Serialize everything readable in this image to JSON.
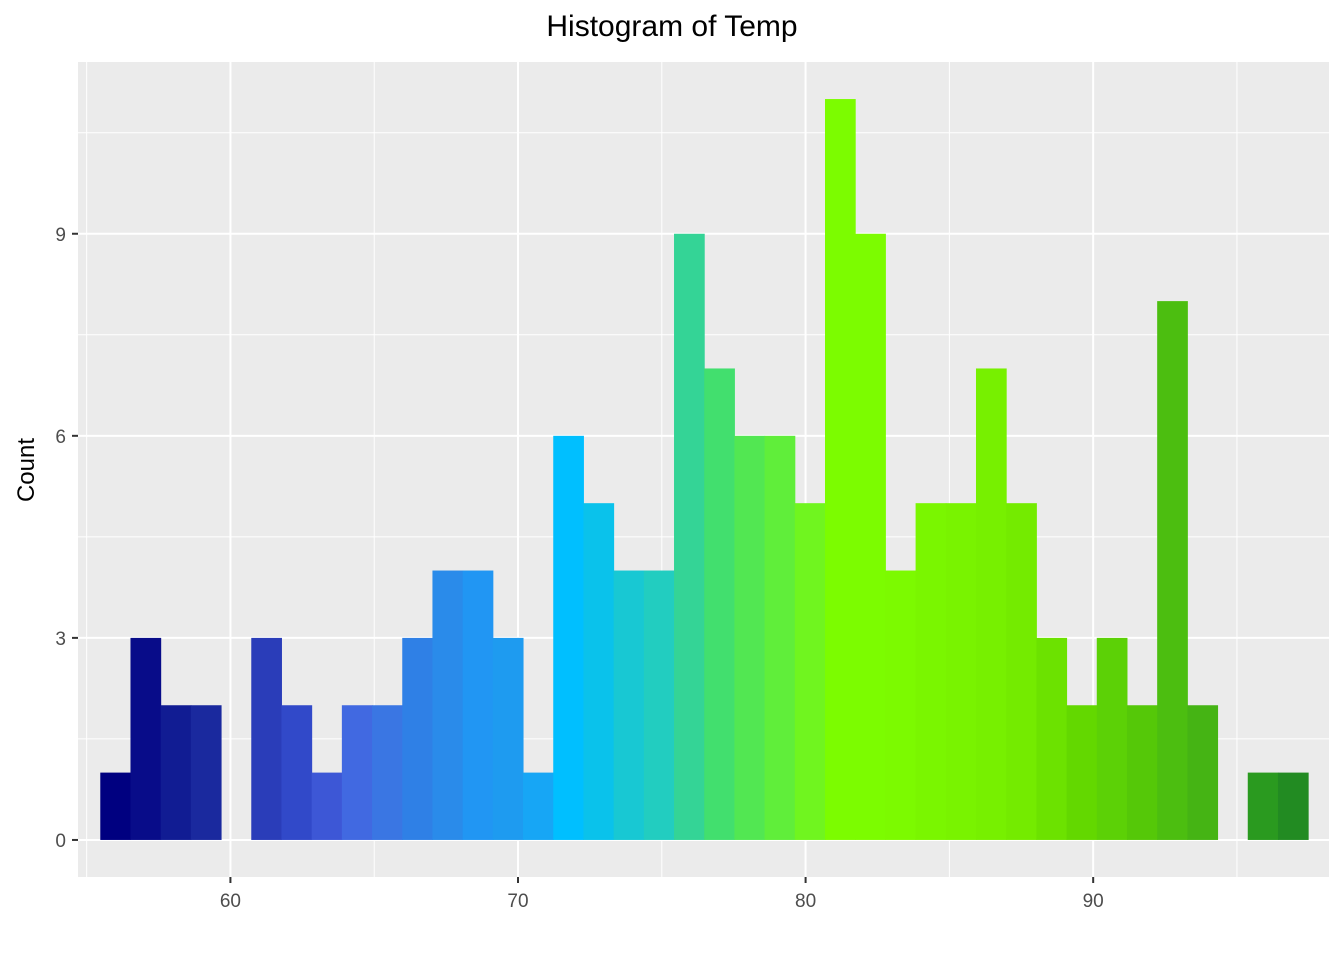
{
  "chart_data": {
    "type": "bar",
    "title": "Histogram of Temp",
    "xlabel": "",
    "ylabel": "Count",
    "x_ticks": [
      60,
      70,
      80,
      90
    ],
    "y_ticks": [
      0,
      3,
      6,
      9
    ],
    "xlim": [
      54.7,
      98.2
    ],
    "ylim": [
      -0.55,
      11.55
    ],
    "grid": true,
    "bins": [
      {
        "x": 56.0,
        "count": 1,
        "color": "#000080"
      },
      {
        "x": 57.05,
        "count": 3,
        "color": "#080C89"
      },
      {
        "x": 58.1,
        "count": 2,
        "color": "#111C93"
      },
      {
        "x": 59.15,
        "count": 2,
        "color": "#1A299E"
      },
      {
        "x": 60.2,
        "count": 0,
        "color": "#2233A8"
      },
      {
        "x": 61.25,
        "count": 3,
        "color": "#2A3DB9"
      },
      {
        "x": 62.3,
        "count": 2,
        "color": "#3149C9"
      },
      {
        "x": 63.35,
        "count": 1,
        "color": "#3D57D6"
      },
      {
        "x": 64.4,
        "count": 2,
        "color": "#4169E1"
      },
      {
        "x": 65.45,
        "count": 2,
        "color": "#3A76E3"
      },
      {
        "x": 66.5,
        "count": 3,
        "color": "#2F80E6"
      },
      {
        "x": 67.55,
        "count": 4,
        "color": "#2A8BEA"
      },
      {
        "x": 68.6,
        "count": 4,
        "color": "#2196F3"
      },
      {
        "x": 69.65,
        "count": 3,
        "color": "#1E9BF0"
      },
      {
        "x": 70.7,
        "count": 1,
        "color": "#17A6F5"
      },
      {
        "x": 71.75,
        "count": 6,
        "color": "#00BFFF"
      },
      {
        "x": 72.8,
        "count": 5,
        "color": "#0AC2EB"
      },
      {
        "x": 73.85,
        "count": 4,
        "color": "#18C8D3"
      },
      {
        "x": 74.9,
        "count": 4,
        "color": "#22CDC0"
      },
      {
        "x": 75.95,
        "count": 9,
        "color": "#34D496"
      },
      {
        "x": 77.0,
        "count": 7,
        "color": "#42DF6E"
      },
      {
        "x": 78.05,
        "count": 6,
        "color": "#52E752"
      },
      {
        "x": 79.1,
        "count": 6,
        "color": "#60EE3A"
      },
      {
        "x": 80.15,
        "count": 5,
        "color": "#70F51F"
      },
      {
        "x": 81.2,
        "count": 11,
        "color": "#7CFC00"
      },
      {
        "x": 82.25,
        "count": 9,
        "color": "#7CFC00"
      },
      {
        "x": 83.3,
        "count": 4,
        "color": "#7CFA00"
      },
      {
        "x": 84.35,
        "count": 5,
        "color": "#7AF600"
      },
      {
        "x": 85.4,
        "count": 5,
        "color": "#79F300"
      },
      {
        "x": 86.45,
        "count": 7,
        "color": "#77F000"
      },
      {
        "x": 87.5,
        "count": 5,
        "color": "#74EB00"
      },
      {
        "x": 88.55,
        "count": 3,
        "color": "#6CE200"
      },
      {
        "x": 89.6,
        "count": 2,
        "color": "#63D800"
      },
      {
        "x": 90.65,
        "count": 3,
        "color": "#5CD106"
      },
      {
        "x": 91.7,
        "count": 2,
        "color": "#55C808"
      },
      {
        "x": 92.75,
        "count": 8,
        "color": "#4CBE10"
      },
      {
        "x": 93.8,
        "count": 2,
        "color": "#45B414"
      },
      {
        "x": 94.85,
        "count": 0,
        "color": "#3AA61A"
      },
      {
        "x": 95.9,
        "count": 1,
        "color": "#2A9A1F"
      },
      {
        "x": 96.95,
        "count": 1,
        "color": "#228B22"
      }
    ]
  }
}
